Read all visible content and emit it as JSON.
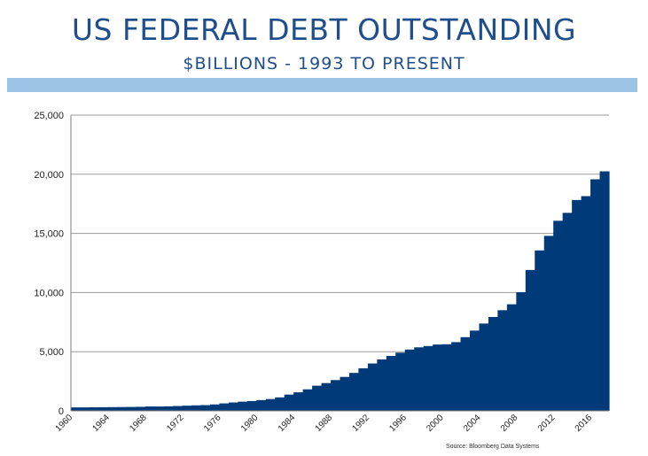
{
  "header": {
    "title": "US FEDERAL DEBT OUTSTANDING",
    "subtitle": "$BILLIONS - 1993 TO PRESENT"
  },
  "source_note": "Source:  Bloomberg Data Systems",
  "colors": {
    "title": "#1f4e8c",
    "band": "#9dc3e6",
    "area": "#003a78",
    "grid": "#999999"
  },
  "chart_data": {
    "type": "area",
    "style": "step",
    "title": "US FEDERAL DEBT OUTSTANDING",
    "subtitle": "$BILLIONS - 1993 TO PRESENT",
    "xlabel": "",
    "ylabel": "",
    "xlim": [
      1960,
      2018
    ],
    "ylim": [
      0,
      25000
    ],
    "grid": true,
    "legend": "none",
    "yticks": [
      0,
      5000,
      10000,
      15000,
      20000,
      25000
    ],
    "ytick_labels": [
      "0",
      "5,000",
      "10,000",
      "15,000",
      "20,000",
      "25,000"
    ],
    "xtick_labels": [
      "1960",
      "1964",
      "1968",
      "1972",
      "1976",
      "1980",
      "1984",
      "1988",
      "1992",
      "1996",
      "2000",
      "2004",
      "2008",
      "2012",
      "2016"
    ],
    "series": [
      {
        "x": [
          1960,
          1961,
          1962,
          1963,
          1964,
          1965,
          1966,
          1967,
          1968,
          1969,
          1970,
          1971,
          1972,
          1973,
          1974,
          1975,
          1976,
          1977,
          1978,
          1979,
          1980,
          1981,
          1982,
          1983,
          1984,
          1985,
          1986,
          1987,
          1988,
          1989,
          1990,
          1991,
          1992,
          1993,
          1994,
          1995,
          1996,
          1997,
          1998,
          1999,
          2000,
          2001,
          2002,
          2003,
          2004,
          2005,
          2006,
          2007,
          2008,
          2009,
          2010,
          2011,
          2012,
          2013,
          2014,
          2015,
          2016,
          2017
        ],
        "values": [
          290,
          292,
          302,
          310,
          316,
          322,
          328,
          340,
          368,
          366,
          381,
          408,
          436,
          466,
          483,
          541,
          629,
          706,
          776,
          829,
          909,
          995,
          1137,
          1372,
          1565,
          1818,
          2125,
          2346,
          2601,
          2868,
          3206,
          3598,
          4002,
          4351,
          4643,
          4921,
          5181,
          5369,
          5478,
          5606,
          5629,
          5807,
          6228,
          6783,
          7379,
          7933,
          8507,
          9008,
          10025,
          11910,
          13562,
          14790,
          16066,
          16738,
          17824,
          18150,
          19573,
          20245
        ]
      }
    ]
  }
}
